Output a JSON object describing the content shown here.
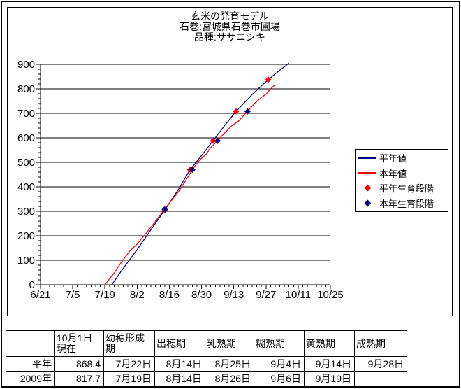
{
  "colors": {
    "normal_line": "#000080",
    "current_line": "#FF0000",
    "normal_stage_marker": "#FF0000",
    "current_stage_marker": "#000080",
    "axis": "#000000",
    "background": "#FFFFFF"
  },
  "chart_data": {
    "type": "line",
    "title_lines": [
      "玄米の発育モデル",
      "石巻:宮城県石巻市圃場",
      "品種:ササニシキ"
    ],
    "x_axis": {
      "tick_labels": [
        "6/21",
        "7/5",
        "7/19",
        "8/2",
        "8/16",
        "8/30",
        "9/13",
        "9/27",
        "10/11",
        "10/25"
      ],
      "range": [
        "6/21",
        "10/25"
      ],
      "major_interval_days": 14,
      "minor_interval_days": 2
    },
    "y_axis": {
      "min": 0,
      "max": 900,
      "major_interval": 100,
      "minor_interval": 20,
      "tick_labels": [
        "0",
        "100",
        "200",
        "300",
        "400",
        "500",
        "600",
        "700",
        "800",
        "900"
      ]
    },
    "grid": "horizontal-major",
    "legend_position": "right",
    "series": [
      {
        "name": "平年値",
        "kind": "line",
        "color": "#000080",
        "points": [
          [
            "7/22",
            0
          ],
          [
            "7/26",
            55
          ],
          [
            "8/2",
            143
          ],
          [
            "8/8",
            225
          ],
          [
            "8/14",
            305
          ],
          [
            "8/20",
            390
          ],
          [
            "8/25",
            470
          ],
          [
            "8/30",
            528
          ],
          [
            "9/4",
            588
          ],
          [
            "9/9",
            650
          ],
          [
            "9/14",
            708
          ],
          [
            "9/21",
            777
          ],
          [
            "9/28",
            838
          ],
          [
            "10/3",
            876
          ],
          [
            "10/7",
            905
          ]
        ]
      },
      {
        "name": "本年値",
        "kind": "line",
        "color": "#FF0000",
        "points": [
          [
            "7/19",
            0
          ],
          [
            "7/23",
            48
          ],
          [
            "7/26",
            90
          ],
          [
            "7/30",
            140
          ],
          [
            "8/2",
            166
          ],
          [
            "8/5",
            200
          ],
          [
            "8/8",
            235
          ],
          [
            "8/11",
            272
          ],
          [
            "8/14",
            310
          ],
          [
            "8/17",
            345
          ],
          [
            "8/20",
            380
          ],
          [
            "8/23",
            424
          ],
          [
            "8/26",
            470
          ],
          [
            "8/29",
            508
          ],
          [
            "9/1",
            533
          ],
          [
            "9/3",
            560
          ],
          [
            "9/6",
            588
          ],
          [
            "9/9",
            620
          ],
          [
            "9/12",
            648
          ],
          [
            "9/15",
            668
          ],
          [
            "9/19",
            708
          ],
          [
            "9/22",
            740
          ],
          [
            "9/25",
            765
          ],
          [
            "9/27",
            778
          ],
          [
            "9/29",
            800
          ],
          [
            "10/1",
            817
          ]
        ]
      },
      {
        "name": "平年生育段階",
        "kind": "scatter",
        "marker": "diamond",
        "color": "#FF0000",
        "points": [
          [
            "8/14",
            305
          ],
          [
            "8/25",
            470
          ],
          [
            "9/4",
            588
          ],
          [
            "9/14",
            708
          ],
          [
            "9/28",
            838
          ]
        ]
      },
      {
        "name": "本年生育段階",
        "kind": "scatter",
        "marker": "diamond",
        "color": "#000080",
        "points": [
          [
            "8/14",
            308
          ],
          [
            "8/26",
            470
          ],
          [
            "9/6",
            588
          ],
          [
            "9/19",
            708
          ]
        ]
      }
    ]
  },
  "table": {
    "header_row": [
      {
        "lines": [
          ""
        ]
      },
      {
        "lines": [
          "10月1日",
          "現在"
        ]
      },
      {
        "lines": [
          "幼穂形成",
          "期"
        ]
      },
      {
        "lines": [
          "出穂期"
        ]
      },
      {
        "lines": [
          "乳熟期"
        ]
      },
      {
        "lines": [
          "糊熟期"
        ]
      },
      {
        "lines": [
          "黄熟期"
        ]
      },
      {
        "lines": [
          "成熟期"
        ]
      }
    ],
    "rows": [
      {
        "label": "平年",
        "values": [
          "868.4",
          "7月22日",
          "8月14日",
          "8月25日",
          "9月4日",
          "9月14日",
          "9月28日"
        ]
      },
      {
        "label": "2009年",
        "values": [
          "817.7",
          "7月19日",
          "8月14日",
          "8月26日",
          "9月6日",
          "9月19日",
          ""
        ]
      }
    ]
  }
}
